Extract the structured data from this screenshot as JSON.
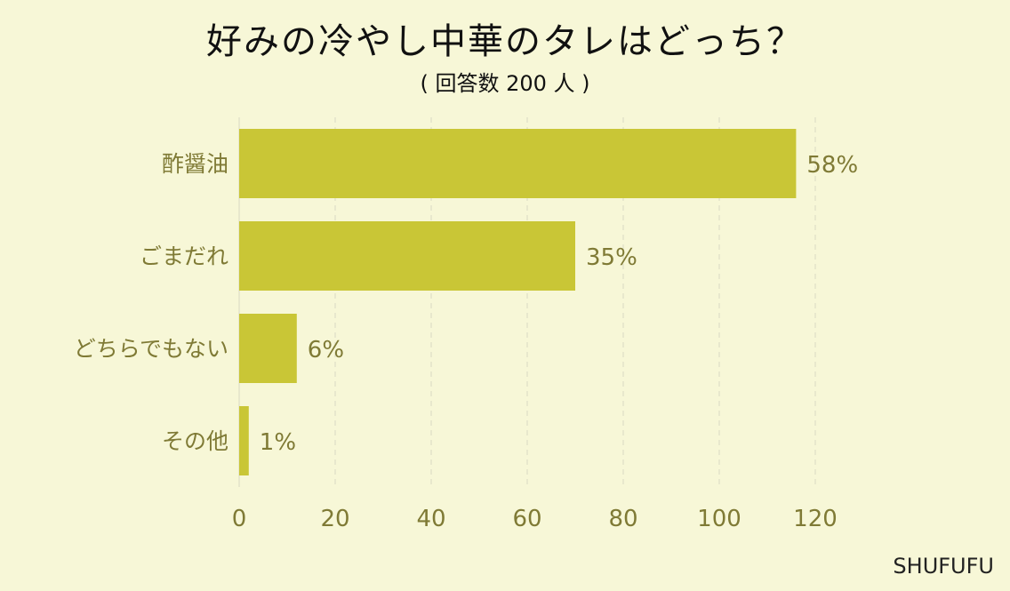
{
  "chart_data": {
    "type": "bar",
    "orientation": "horizontal",
    "title": "好みの冷やし中華のタレはどっち？",
    "subtitle": "( 回答数 200 人 )",
    "categories": [
      "酢醤油",
      "ごまだれ",
      "どちらでもない",
      "その他"
    ],
    "values": [
      116,
      70,
      12,
      2
    ],
    "data_labels": [
      "58%",
      "35%",
      "6%",
      "1%"
    ],
    "xlim": [
      0,
      120
    ],
    "xticks": [
      0,
      20,
      40,
      60,
      80,
      100,
      120
    ],
    "xtick_labels": [
      "0",
      "20",
      "40",
      "60",
      "80",
      "100",
      "120"
    ],
    "grid": true
  },
  "colors": {
    "bar": "#c9c636",
    "background": "#f7f7d7",
    "label": "#7f7a35",
    "grid": "#d9d9c3"
  },
  "brand": "SHUFUFU"
}
